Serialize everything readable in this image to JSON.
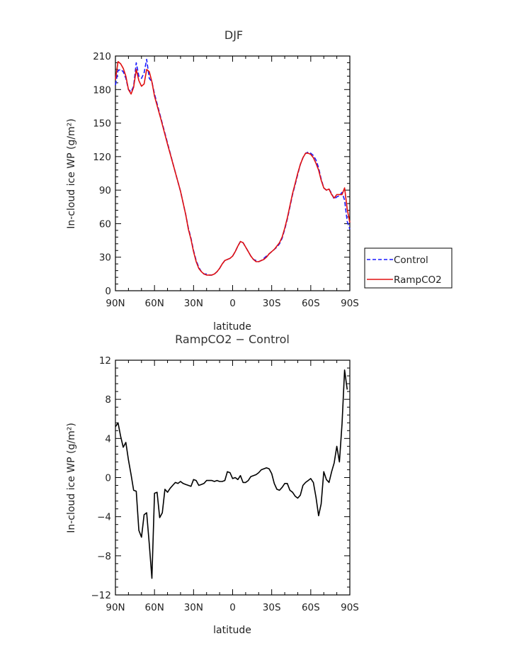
{
  "chart_data": [
    {
      "type": "line",
      "title": "DJF",
      "xlabel": "latitude",
      "ylabel": "In-cloud ice WP (g/m²)",
      "xlim": [
        -90,
        90
      ],
      "ylim": [
        0,
        210
      ],
      "x_ticks": [
        -90,
        -60,
        -30,
        0,
        30,
        60,
        90
      ],
      "x_tick_labels": [
        "90N",
        "60N",
        "30N",
        "0",
        "30S",
        "60S",
        "90S"
      ],
      "y_ticks": [
        0,
        30,
        60,
        90,
        120,
        150,
        180,
        210
      ],
      "y_tick_labels": [
        "0",
        "30",
        "60",
        "90",
        "120",
        "150",
        "180",
        "210"
      ],
      "legend": {
        "placement": "right"
      },
      "series": [
        {
          "name": "Control",
          "color": "#1a1aff",
          "dash": "dashed",
          "points": [
            [
              -90,
              184
            ],
            [
              -88,
              197
            ],
            [
              -86,
              198
            ],
            [
              -84,
              196
            ],
            [
              -82,
              190
            ],
            [
              -80,
              180
            ],
            [
              -78,
              178
            ],
            [
              -76,
              183
            ],
            [
              -74,
              204
            ],
            [
              -72,
              192
            ],
            [
              -70,
              190
            ],
            [
              -68,
              195
            ],
            [
              -66,
              207
            ],
            [
              -64,
              190
            ],
            [
              -62,
              187
            ],
            [
              -60,
              176
            ],
            [
              -55,
              154
            ],
            [
              -50,
              132
            ],
            [
              -45,
              110
            ],
            [
              -40,
              89
            ],
            [
              -36,
              68
            ],
            [
              -34,
              56
            ],
            [
              -32,
              47
            ],
            [
              -30,
              36
            ],
            [
              -28,
              27
            ],
            [
              -26,
              21
            ],
            [
              -24,
              17
            ],
            [
              -22,
              15
            ],
            [
              -20,
              15
            ],
            [
              -18,
              14
            ],
            [
              -16,
              14
            ],
            [
              -14,
              15
            ],
            [
              -12,
              17
            ],
            [
              -10,
              20
            ],
            [
              -8,
              24
            ],
            [
              -6,
              27
            ],
            [
              -4,
              28
            ],
            [
              -2,
              29
            ],
            [
              0,
              31
            ],
            [
              2,
              35
            ],
            [
              4,
              40
            ],
            [
              6,
              44
            ],
            [
              8,
              43
            ],
            [
              10,
              39
            ],
            [
              12,
              35
            ],
            [
              14,
              31
            ],
            [
              16,
              28
            ],
            [
              18,
              27
            ],
            [
              20,
              26
            ],
            [
              22,
              27
            ],
            [
              24,
              29
            ],
            [
              26,
              31
            ],
            [
              28,
              33
            ],
            [
              30,
              35
            ],
            [
              32,
              37
            ],
            [
              34,
              39
            ],
            [
              36,
              42
            ],
            [
              38,
              47
            ],
            [
              40,
              55
            ],
            [
              42,
              64
            ],
            [
              44,
              75
            ],
            [
              46,
              86
            ],
            [
              48,
              95
            ],
            [
              50,
              104
            ],
            [
              52,
              113
            ],
            [
              54,
              119
            ],
            [
              56,
              123
            ],
            [
              58,
              124
            ],
            [
              60,
              123
            ],
            [
              62,
              121
            ],
            [
              64,
              117
            ],
            [
              66,
              110
            ],
            [
              68,
              100
            ],
            [
              70,
              92
            ],
            [
              72,
              90
            ],
            [
              74,
              91
            ],
            [
              76,
              87
            ],
            [
              78,
              82
            ],
            [
              80,
              84
            ],
            [
              82,
              85
            ],
            [
              84,
              88
            ],
            [
              86,
              81
            ],
            [
              88,
              62
            ],
            [
              90,
              55
            ]
          ]
        },
        {
          "name": "RampCO2",
          "color": "#e01010",
          "dash": "solid",
          "points": [
            [
              -90,
              189
            ],
            [
              -88,
              205
            ],
            [
              -86,
              203
            ],
            [
              -84,
              199
            ],
            [
              -82,
              192
            ],
            [
              -80,
              180
            ],
            [
              -78,
              176
            ],
            [
              -76,
              182
            ],
            [
              -74,
              198
            ],
            [
              -72,
              188
            ],
            [
              -70,
              183
            ],
            [
              -68,
              185
            ],
            [
              -66,
              198
            ],
            [
              -64,
              196
            ],
            [
              -62,
              187
            ],
            [
              -60,
              174
            ],
            [
              -55,
              153
            ],
            [
              -50,
              131
            ],
            [
              -45,
              110
            ],
            [
              -40,
              89
            ],
            [
              -36,
              68
            ],
            [
              -34,
              55
            ],
            [
              -32,
              46
            ],
            [
              -30,
              35
            ],
            [
              -28,
              26
            ],
            [
              -26,
              20
            ],
            [
              -24,
              17
            ],
            [
              -22,
              15
            ],
            [
              -20,
              14
            ],
            [
              -18,
              14
            ],
            [
              -16,
              14
            ],
            [
              -14,
              15
            ],
            [
              -12,
              17
            ],
            [
              -10,
              20
            ],
            [
              -8,
              24
            ],
            [
              -6,
              27
            ],
            [
              -4,
              28
            ],
            [
              -2,
              29
            ],
            [
              0,
              31
            ],
            [
              2,
              35
            ],
            [
              4,
              40
            ],
            [
              6,
              44
            ],
            [
              8,
              43
            ],
            [
              10,
              39
            ],
            [
              12,
              35
            ],
            [
              14,
              31
            ],
            [
              16,
              28
            ],
            [
              18,
              26
            ],
            [
              20,
              26
            ],
            [
              22,
              27
            ],
            [
              24,
              28
            ],
            [
              26,
              30
            ],
            [
              28,
              33
            ],
            [
              30,
              35
            ],
            [
              32,
              37
            ],
            [
              34,
              40
            ],
            [
              36,
              43
            ],
            [
              38,
              48
            ],
            [
              40,
              56
            ],
            [
              42,
              65
            ],
            [
              44,
              76
            ],
            [
              46,
              87
            ],
            [
              48,
              96
            ],
            [
              50,
              105
            ],
            [
              52,
              113
            ],
            [
              54,
              119
            ],
            [
              56,
              123
            ],
            [
              58,
              123
            ],
            [
              60,
              122
            ],
            [
              62,
              119
            ],
            [
              64,
              114
            ],
            [
              66,
              108
            ],
            [
              68,
              99
            ],
            [
              70,
              92
            ],
            [
              72,
              90
            ],
            [
              74,
              91
            ],
            [
              76,
              86
            ],
            [
              78,
              83
            ],
            [
              80,
              86
            ],
            [
              82,
              86
            ],
            [
              84,
              86
            ],
            [
              86,
              92
            ],
            [
              88,
              73
            ],
            [
              90,
              61
            ]
          ]
        }
      ]
    },
    {
      "type": "line",
      "title": "RampCO2 − Control",
      "xlabel": "latitude",
      "ylabel": "In-cloud ice WP (g/m²)",
      "xlim": [
        -90,
        90
      ],
      "ylim": [
        -12,
        12
      ],
      "x_ticks": [
        -90,
        -60,
        -30,
        0,
        30,
        60,
        90
      ],
      "x_tick_labels": [
        "90N",
        "60N",
        "30N",
        "0",
        "30S",
        "60S",
        "90S"
      ],
      "y_ticks": [
        -12,
        -8,
        -4,
        0,
        4,
        8,
        12
      ],
      "y_tick_labels": [
        "−12",
        "−8",
        "−4",
        "0",
        "4",
        "8",
        "12"
      ],
      "series": [
        {
          "color": "#000000",
          "dash": "solid",
          "points": [
            [
              -90,
              5.2
            ],
            [
              -88,
              5.6
            ],
            [
              -86,
              4.2
            ],
            [
              -84,
              3.1
            ],
            [
              -82,
              3.6
            ],
            [
              -80,
              1.8
            ],
            [
              -78,
              0.3
            ],
            [
              -76,
              -1.3
            ],
            [
              -74,
              -1.4
            ],
            [
              -72,
              -5.4
            ],
            [
              -70,
              -6.1
            ],
            [
              -68,
              -3.8
            ],
            [
              -66,
              -3.6
            ],
            [
              -64,
              -6.8
            ],
            [
              -62,
              -10.3
            ],
            [
              -60,
              -1.6
            ],
            [
              -58,
              -1.5
            ],
            [
              -56,
              -4.1
            ],
            [
              -54,
              -3.6
            ],
            [
              -52,
              -1.2
            ],
            [
              -50,
              -1.5
            ],
            [
              -48,
              -1.1
            ],
            [
              -46,
              -0.8
            ],
            [
              -44,
              -0.5
            ],
            [
              -42,
              -0.6
            ],
            [
              -40,
              -0.4
            ],
            [
              -38,
              -0.6
            ],
            [
              -36,
              -0.7
            ],
            [
              -34,
              -0.8
            ],
            [
              -32,
              -0.9
            ],
            [
              -30,
              -0.2
            ],
            [
              -28,
              -0.3
            ],
            [
              -26,
              -0.8
            ],
            [
              -24,
              -0.7
            ],
            [
              -22,
              -0.6
            ],
            [
              -20,
              -0.3
            ],
            [
              -18,
              -0.3
            ],
            [
              -16,
              -0.3
            ],
            [
              -14,
              -0.4
            ],
            [
              -12,
              -0.3
            ],
            [
              -10,
              -0.4
            ],
            [
              -8,
              -0.4
            ],
            [
              -6,
              -0.3
            ],
            [
              -4,
              0.6
            ],
            [
              -2,
              0.5
            ],
            [
              0,
              -0.1
            ],
            [
              2,
              0.0
            ],
            [
              4,
              -0.2
            ],
            [
              6,
              0.2
            ],
            [
              8,
              -0.5
            ],
            [
              10,
              -0.5
            ],
            [
              12,
              -0.3
            ],
            [
              14,
              0.1
            ],
            [
              16,
              0.2
            ],
            [
              18,
              0.3
            ],
            [
              20,
              0.5
            ],
            [
              22,
              0.8
            ],
            [
              24,
              0.9
            ],
            [
              26,
              1.0
            ],
            [
              28,
              0.9
            ],
            [
              30,
              0.4
            ],
            [
              32,
              -0.6
            ],
            [
              34,
              -1.2
            ],
            [
              36,
              -1.3
            ],
            [
              38,
              -1.0
            ],
            [
              40,
              -0.6
            ],
            [
              42,
              -0.6
            ],
            [
              44,
              -1.3
            ],
            [
              46,
              -1.5
            ],
            [
              48,
              -1.9
            ],
            [
              50,
              -2.1
            ],
            [
              52,
              -1.8
            ],
            [
              54,
              -0.8
            ],
            [
              56,
              -0.5
            ],
            [
              58,
              -0.3
            ],
            [
              60,
              -0.1
            ],
            [
              62,
              -0.5
            ],
            [
              64,
              -2.0
            ],
            [
              66,
              -3.9
            ],
            [
              68,
              -2.7
            ],
            [
              70,
              0.6
            ],
            [
              72,
              -0.2
            ],
            [
              74,
              -0.5
            ],
            [
              76,
              0.6
            ],
            [
              78,
              1.5
            ],
            [
              80,
              3.2
            ],
            [
              82,
              1.6
            ],
            [
              84,
              5.5
            ],
            [
              86,
              11.0
            ],
            [
              88,
              9.0
            ]
          ]
        }
      ]
    }
  ]
}
